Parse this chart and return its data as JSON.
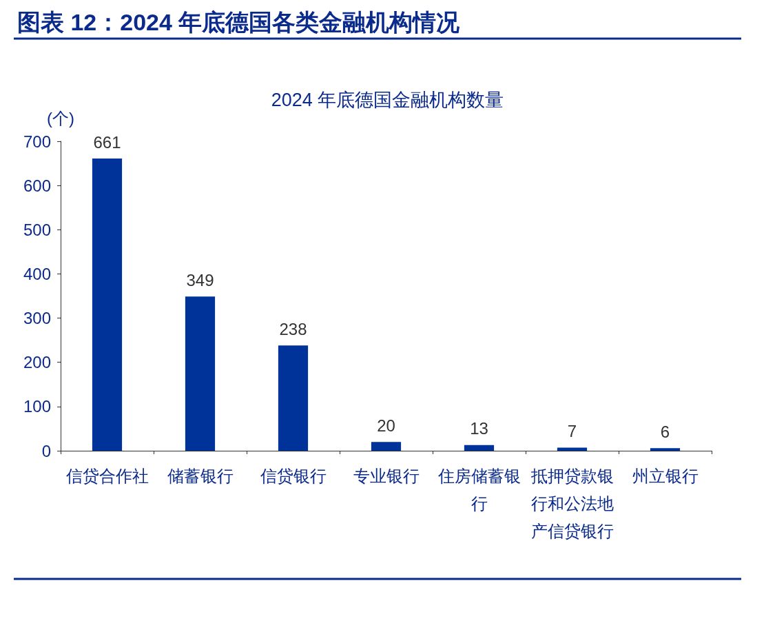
{
  "chart_data": {
    "type": "bar",
    "title": "图表 12：2024 年底德国各类金融机构情况",
    "subtitle": "2024 年底德国金融机构数量",
    "ylabel": "(个)",
    "categories": [
      "信贷合作社",
      "储蓄银行",
      "信贷银行",
      "专业银行",
      "住房储蓄银行",
      "抵押贷款银行和公法地产信贷银行",
      "州立银行"
    ],
    "values": [
      661,
      349,
      238,
      20,
      13,
      7,
      6
    ],
    "color": "#003399",
    "ylim": [
      0,
      700
    ],
    "yticks": [
      0,
      100,
      200,
      300,
      400,
      500,
      600,
      700
    ],
    "grid": false,
    "data_labels": true
  }
}
